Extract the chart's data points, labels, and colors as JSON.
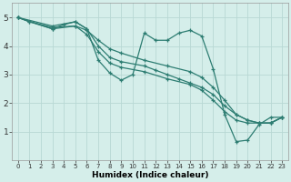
{
  "xlabel": "Humidex (Indice chaleur)",
  "bg_color": "#d5eeea",
  "grid_color": "#b8d8d4",
  "line_color": "#2d7d72",
  "xlim": [
    -0.5,
    23.5
  ],
  "ylim": [
    0.0,
    5.5
  ],
  "yticks": [
    1,
    2,
    3,
    4,
    5
  ],
  "xticks": [
    0,
    1,
    2,
    3,
    4,
    5,
    6,
    7,
    8,
    9,
    10,
    11,
    12,
    13,
    14,
    15,
    16,
    17,
    18,
    19,
    20,
    21,
    22,
    23
  ],
  "lines": [
    {
      "x": [
        0,
        1,
        3,
        5,
        6,
        7,
        8,
        9,
        11,
        13,
        15,
        16,
        17,
        18,
        19,
        20,
        21,
        22,
        23
      ],
      "y": [
        5.0,
        4.85,
        4.65,
        4.7,
        4.55,
        4.2,
        3.9,
        3.75,
        3.5,
        3.3,
        3.1,
        2.9,
        2.55,
        2.1,
        1.6,
        1.4,
        1.3,
        1.3,
        1.5
      ]
    },
    {
      "x": [
        0,
        1,
        3,
        4,
        5,
        6,
        7,
        8,
        9,
        11,
        12,
        13,
        14,
        15,
        16,
        17,
        18,
        19,
        20,
        21,
        22,
        23
      ],
      "y": [
        5.0,
        4.85,
        4.6,
        4.75,
        4.85,
        4.6,
        4.0,
        3.6,
        3.45,
        3.3,
        3.15,
        3.0,
        2.85,
        2.7,
        2.55,
        2.3,
        1.9,
        1.6,
        1.4,
        1.3,
        1.3,
        1.5
      ]
    },
    {
      "x": [
        0,
        3,
        5,
        6,
        7,
        8,
        9,
        10,
        11,
        12,
        13,
        14,
        15,
        16,
        17,
        18,
        19,
        20,
        21,
        22,
        23
      ],
      "y": [
        5.0,
        4.7,
        4.85,
        4.6,
        3.5,
        3.05,
        2.8,
        3.0,
        4.45,
        4.2,
        4.2,
        4.45,
        4.55,
        4.35,
        3.2,
        1.6,
        0.65,
        0.7,
        1.25,
        1.5,
        1.5
      ]
    },
    {
      "x": [
        0,
        3,
        5,
        6,
        7,
        8,
        9,
        11,
        13,
        15,
        16,
        17,
        18,
        19,
        20,
        21,
        22,
        23
      ],
      "y": [
        5.0,
        4.6,
        4.7,
        4.4,
        3.8,
        3.4,
        3.25,
        3.1,
        2.85,
        2.65,
        2.45,
        2.1,
        1.7,
        1.4,
        1.3,
        1.3,
        1.3,
        1.5
      ]
    }
  ]
}
